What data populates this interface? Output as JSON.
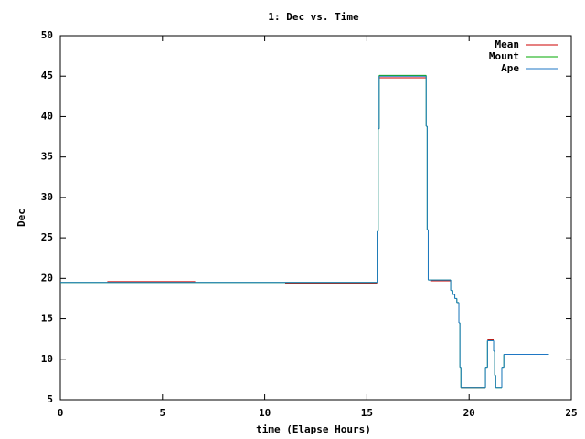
{
  "chart_data": {
    "type": "line",
    "step": "post",
    "title": "1: Dec vs. Time",
    "x_label": "time (Elapse Hours)",
    "y_label": "Dec",
    "xlim": [
      0,
      25
    ],
    "xticks": [
      0,
      5,
      10,
      15,
      20,
      25
    ],
    "ylim": [
      5,
      50
    ],
    "yticks": [
      5,
      10,
      15,
      20,
      25,
      30,
      35,
      40,
      45,
      50
    ],
    "legend": "top-right",
    "series": [
      {
        "name": "Mean",
        "color": "#cc0000",
        "x": [
          2.3,
          6.6,
          11,
          15.5,
          15.6,
          17.9,
          18.1,
          19.1,
          19.6,
          20.8,
          20.9,
          21.2
        ],
        "values": [
          19.6,
          null,
          19.4,
          null,
          44.8,
          null,
          19.7,
          null,
          6.5,
          null,
          12.4,
          null
        ]
      },
      {
        "name": "Mount",
        "color": "#00aa00",
        "x": [
          0,
          15.5,
          15.55,
          15.6,
          17.9,
          17.95,
          18.0,
          19.1,
          19.2,
          19.3,
          19.4,
          19.5,
          19.55,
          19.6,
          20.8,
          20.9,
          21.2,
          21.25,
          21.3,
          21.6,
          21.7,
          23.9
        ],
        "values": [
          19.5,
          25.8,
          38.5,
          45.1,
          38.8,
          26,
          19.8,
          18.5,
          18,
          17.5,
          17,
          14.5,
          9,
          6.5,
          9,
          12.3,
          11,
          8,
          6.5,
          9,
          10.6,
          10.6
        ]
      },
      {
        "name": "Ape",
        "color": "#1f77c4",
        "x": [
          0,
          15.5,
          15.55,
          15.6,
          17.9,
          17.95,
          18.0,
          19.1,
          19.2,
          19.3,
          19.4,
          19.5,
          19.55,
          19.6,
          20.8,
          20.9,
          21.2,
          21.25,
          21.3,
          21.6,
          21.7,
          23.9
        ],
        "values": [
          19.5,
          25.8,
          38.5,
          45,
          38.8,
          26,
          19.8,
          18.5,
          18,
          17.5,
          17,
          14.5,
          9,
          6.5,
          9,
          12.3,
          11,
          8,
          6.5,
          9,
          10.6,
          10.6
        ]
      }
    ]
  }
}
